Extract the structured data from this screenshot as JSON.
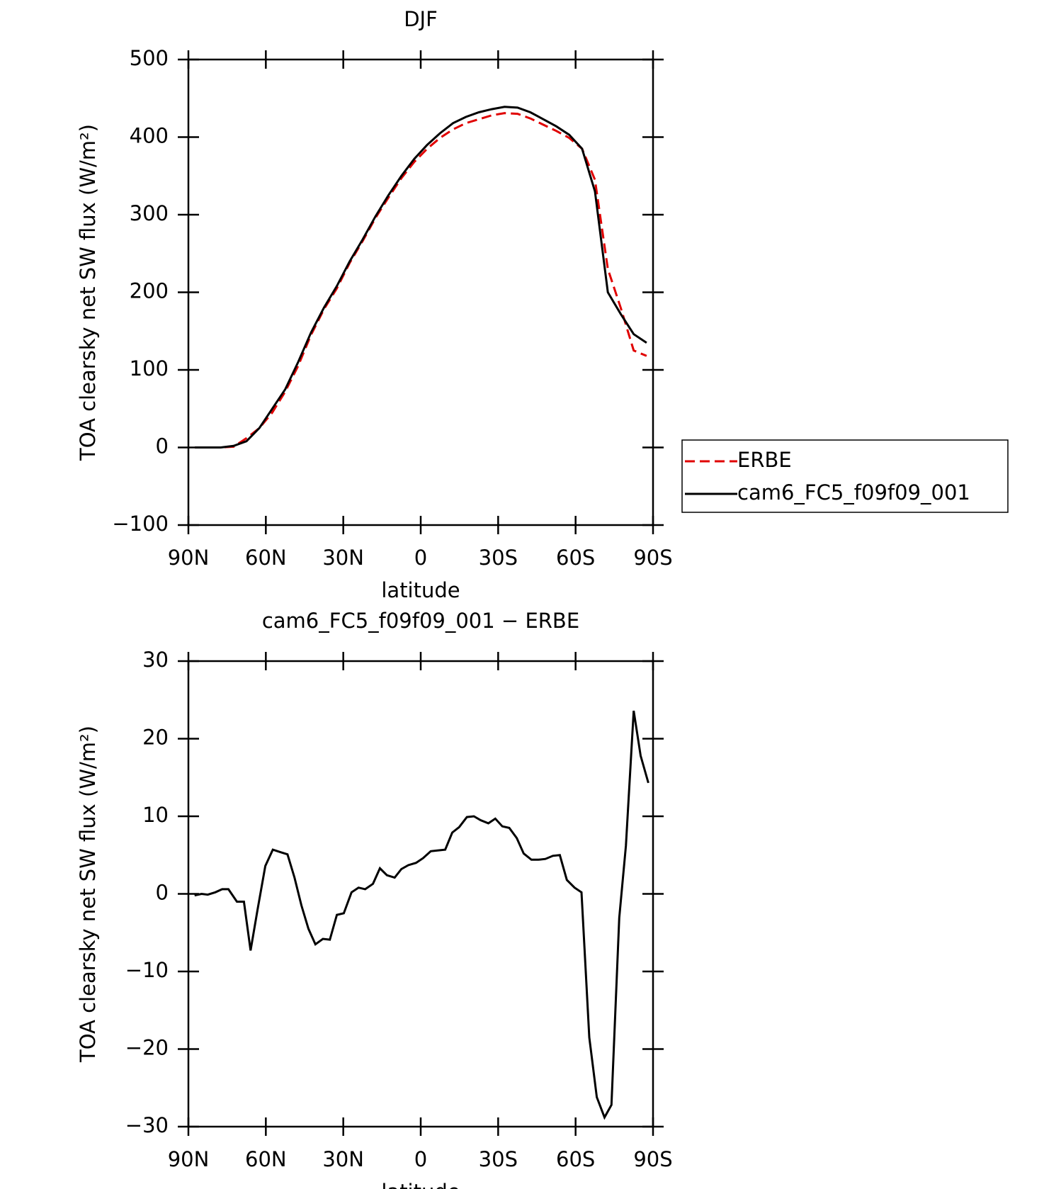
{
  "chart_data": [
    {
      "type": "line",
      "title": "DJF",
      "xlabel": "latitude",
      "ylabel": "TOA clearsky net SW flux (W/m²)",
      "x": [
        87.5,
        82.5,
        77.5,
        72.5,
        67.5,
        62.5,
        57.5,
        52.5,
        47.5,
        42.5,
        37.5,
        32.5,
        27.5,
        22.5,
        17.5,
        12.5,
        7.5,
        2.5,
        -2.5,
        -7.5,
        -12.5,
        -17.5,
        -22.5,
        -27.5,
        -32.5,
        -37.5,
        -42.5,
        -47.5,
        -52.5,
        -57.5,
        -62.5,
        -67.5,
        -72.5,
        -77.5,
        -82.5,
        -87.5
      ],
      "xlim": [
        90,
        -90
      ],
      "xticks": [
        {
          "value": 90,
          "label": "90N"
        },
        {
          "value": 60,
          "label": "60N"
        },
        {
          "value": 30,
          "label": "30N"
        },
        0,
        {
          "value": -30,
          "label": "30S"
        },
        {
          "value": -60,
          "label": "60S"
        },
        {
          "value": -90,
          "label": "90S"
        }
      ],
      "ylim": [
        -100,
        500
      ],
      "yticks": [
        {
          "value": -100,
          "label": "−100"
        },
        0,
        100,
        200,
        300,
        400,
        500
      ],
      "legend": "right",
      "series": [
        {
          "name": "ERBE",
          "color": "#e00000",
          "dashed": true,
          "values": [
            0,
            0,
            0,
            1,
            12,
            25,
            45,
            72,
            105,
            145,
            178,
            205,
            238,
            266,
            296,
            322,
            347,
            368,
            385,
            399,
            410,
            418,
            423,
            428,
            431,
            430,
            424,
            416,
            408,
            399,
            385,
            345,
            230,
            180,
            125,
            118
          ]
        },
        {
          "name": "cam6_FC5_f09f09_001",
          "color": "#000000",
          "dashed": false,
          "values": [
            0,
            0,
            0,
            2,
            8,
            25,
            50,
            75,
            110,
            148,
            180,
            208,
            240,
            268,
            298,
            325,
            350,
            372,
            390,
            405,
            418,
            426,
            432,
            436,
            439,
            438,
            432,
            423,
            414,
            403,
            385,
            330,
            200,
            172,
            146,
            135
          ]
        }
      ]
    },
    {
      "type": "line",
      "title": "cam6_FC5_f09f09_001 − ERBE",
      "xlabel": "latitude",
      "ylabel": "TOA clearsky net SW flux (W/m²)",
      "x": [
        87.6,
        84.9,
        82.5,
        79.6,
        76.9,
        74.5,
        71.2,
        68.5,
        65.9,
        63.2,
        60.2,
        57.3,
        54.5,
        51.6,
        48.9,
        46.2,
        43.5,
        40.8,
        37.9,
        35.2,
        32.5,
        29.8,
        26.8,
        24.1,
        21.5,
        18.5,
        15.8,
        13.1,
        10.1,
        7.5,
        4.8,
        1.8,
        -0.9,
        -3.9,
        -6.5,
        -9.5,
        -12.2,
        -14.9,
        -17.9,
        -20.6,
        -23.2,
        -26.2,
        -28.9,
        -31.6,
        -34.3,
        -37.2,
        -39.9,
        -42.9,
        -45.6,
        -48.3,
        -51.2,
        -53.9,
        -56.6,
        -59.6,
        -62.3,
        -65.3,
        -68.2,
        -71.2,
        -73.9,
        -76.9,
        -79.5,
        -82.5,
        -85.2,
        -88.2
      ],
      "xlim": [
        90,
        -90
      ],
      "xticks": [
        {
          "value": 90,
          "label": "90N"
        },
        {
          "value": 60,
          "label": "60N"
        },
        {
          "value": 30,
          "label": "30N"
        },
        0,
        {
          "value": -30,
          "label": "30S"
        },
        {
          "value": -60,
          "label": "60S"
        },
        {
          "value": -90,
          "label": "90S"
        }
      ],
      "ylim": [
        -30,
        30
      ],
      "yticks": [
        {
          "value": -30,
          "label": "−30"
        },
        {
          "value": -20,
          "label": "−20"
        },
        {
          "value": -10,
          "label": "−10"
        },
        0,
        10,
        20,
        30
      ],
      "color": "#000000",
      "values": [
        -0.2,
        0,
        -0.1,
        0.2,
        0.6,
        0.6,
        -1,
        -1,
        -7.3,
        -2,
        3.6,
        5.7,
        5.4,
        5.1,
        2.1,
        -1.5,
        -4.5,
        -6.5,
        -5.8,
        -5.9,
        -2.7,
        -2.5,
        0.2,
        0.8,
        0.6,
        1.3,
        3.3,
        2.4,
        2.1,
        3.2,
        3.7,
        4.0,
        4.6,
        5.5,
        5.6,
        5.7,
        7.9,
        8.6,
        9.9,
        10,
        9.5,
        9.1,
        9.7,
        8.7,
        8.5,
        7.2,
        5.2,
        4.4,
        4.4,
        4.5,
        4.9,
        5.0,
        1.8,
        0.8,
        0.2,
        -18.5,
        -26.2,
        -28.8,
        -27.2,
        -3.1,
        6.2,
        23.6,
        17.8,
        14.3
      ]
    }
  ]
}
